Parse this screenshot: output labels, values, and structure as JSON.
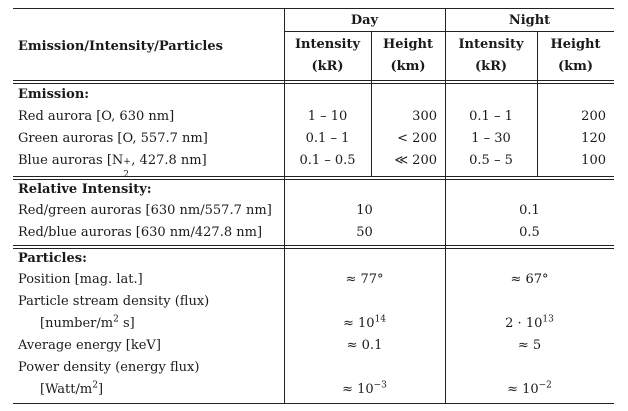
{
  "header": {
    "col_label": "Emission/Intensity/Particles",
    "day": "Day",
    "night": "Night",
    "intensity": "Intensity",
    "height": "Height",
    "unit_kr": "(kR)",
    "unit_km": "(km)"
  },
  "emission": {
    "title": "Emission:",
    "rows": [
      {
        "label": "Red aurora [O, 630 nm]",
        "day_intensity": "1 – 10",
        "day_height": "300",
        "night_intensity": "0.1 – 1",
        "night_height": "200"
      },
      {
        "label": "Green auroras [O, 557.7 nm]",
        "day_intensity": "0.1 – 1",
        "day_height": "< 200",
        "night_intensity": "1 – 30",
        "night_height": "120"
      },
      {
        "label_pre": "Blue auroras [N",
        "label_sub": "2",
        "label_sup": "+",
        "label_post": ", 427.8 nm]",
        "day_intensity": "0.1 – 0.5",
        "day_height": "≪ 200",
        "night_intensity": "0.5 – 5",
        "night_height": "100"
      }
    ]
  },
  "relative": {
    "title": "Relative Intensity:",
    "rows": [
      {
        "label": "Red/green auroras [630 nm/557.7 nm]",
        "day": "10",
        "night": "0.1"
      },
      {
        "label": "Red/blue auroras [630 nm/427.8 nm]",
        "day": "50",
        "night": "0.5"
      }
    ]
  },
  "particles": {
    "title": "Particles:",
    "position": {
      "label": "Position [mag. lat.]",
      "day": "≈ 77°",
      "night": "≈ 67°"
    },
    "stream": {
      "label": "Particle stream density (flux)",
      "unit_pre": "[number/m",
      "unit_sup": "2",
      "unit_post": " s]",
      "day_pre": "≈ 10",
      "day_sup": "14",
      "night_pre": "2 · 10",
      "night_sup": "13"
    },
    "energy": {
      "label": "Average energy [keV]",
      "day": "≈ 0.1",
      "night": "≈ 5"
    },
    "power": {
      "label": "Power density (energy flux)",
      "unit_pre": "[Watt/m",
      "unit_sup": "2",
      "unit_post": "]",
      "day_pre": "≈ 10",
      "day_sup": "−3",
      "night_pre": "≈ 10",
      "night_sup": "−2"
    }
  }
}
